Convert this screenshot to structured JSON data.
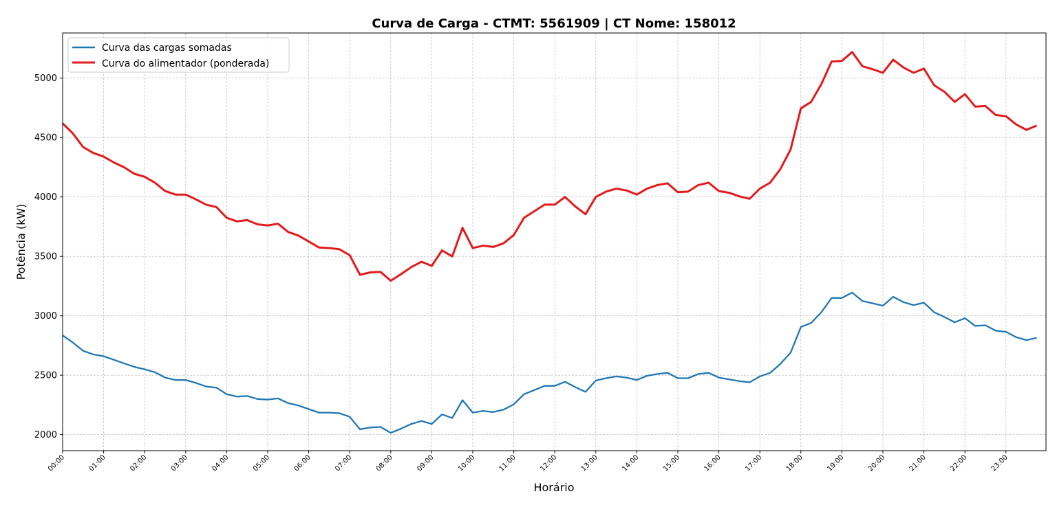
{
  "chart_data": {
    "type": "line",
    "title": "Curva de Carga - CTMT: 5561909 | CT Nome: 158012",
    "xlabel": "Horário",
    "ylabel": "Potência (kW)",
    "x_tick_labels": [
      "00:00",
      "01:00",
      "02:00",
      "03:00",
      "04:00",
      "05:00",
      "06:00",
      "07:00",
      "08:00",
      "09:00",
      "10:00",
      "11:00",
      "12:00",
      "13:00",
      "14:00",
      "15:00",
      "16:00",
      "17:00",
      "18:00",
      "19:00",
      "20:00",
      "21:00",
      "22:00",
      "23:00"
    ],
    "x_interval_minutes": 15,
    "y_ticks": [
      2000,
      2500,
      3000,
      3500,
      4000,
      4500,
      5000
    ],
    "ylim": [
      1865,
      5380
    ],
    "grid": true,
    "legend_position": "upper-left",
    "series": [
      {
        "name": "Curva das cargas somadas",
        "color": "#1f77b4",
        "values": [
          2835,
          2775,
          2705,
          2675,
          2660,
          2630,
          2600,
          2570,
          2550,
          2525,
          2480,
          2460,
          2460,
          2435,
          2405,
          2395,
          2340,
          2320,
          2325,
          2300,
          2295,
          2305,
          2265,
          2245,
          2215,
          2185,
          2185,
          2180,
          2150,
          2045,
          2060,
          2065,
          2015,
          2050,
          2090,
          2115,
          2090,
          2170,
          2140,
          2290,
          2185,
          2200,
          2190,
          2210,
          2255,
          2340,
          2375,
          2410,
          2410,
          2445,
          2400,
          2360,
          2455,
          2475,
          2490,
          2480,
          2460,
          2495,
          2510,
          2520,
          2475,
          2475,
          2510,
          2520,
          2480,
          2465,
          2450,
          2440,
          2490,
          2520,
          2595,
          2690,
          2905,
          2940,
          3030,
          3150,
          3150,
          3195,
          3125,
          3105,
          3085,
          3160,
          3115,
          3090,
          3110,
          3030,
          2990,
          2945,
          2980,
          2915,
          2920,
          2875,
          2865,
          2820,
          2795,
          2815
        ]
      },
      {
        "name": "Curva do alimentador (ponderada)",
        "color": "#e31a1c",
        "values": [
          4620,
          4535,
          4420,
          4370,
          4340,
          4290,
          4250,
          4195,
          4170,
          4120,
          4050,
          4020,
          4020,
          3980,
          3935,
          3915,
          3825,
          3795,
          3805,
          3770,
          3760,
          3775,
          3705,
          3675,
          3625,
          3575,
          3570,
          3560,
          3510,
          3345,
          3365,
          3370,
          3295,
          3350,
          3410,
          3455,
          3420,
          3550,
          3500,
          3740,
          3570,
          3590,
          3580,
          3610,
          3680,
          3825,
          3880,
          3935,
          3935,
          4000,
          3920,
          3855,
          4000,
          4045,
          4070,
          4055,
          4020,
          4070,
          4100,
          4115,
          4040,
          4045,
          4100,
          4120,
          4050,
          4035,
          4005,
          3985,
          4070,
          4120,
          4235,
          4400,
          4745,
          4800,
          4950,
          5140,
          5145,
          5220,
          5100,
          5075,
          5045,
          5155,
          5090,
          5045,
          5080,
          4940,
          4885,
          4800,
          4865,
          4760,
          4765,
          4690,
          4680,
          4610,
          4565,
          4600
        ]
      }
    ]
  }
}
